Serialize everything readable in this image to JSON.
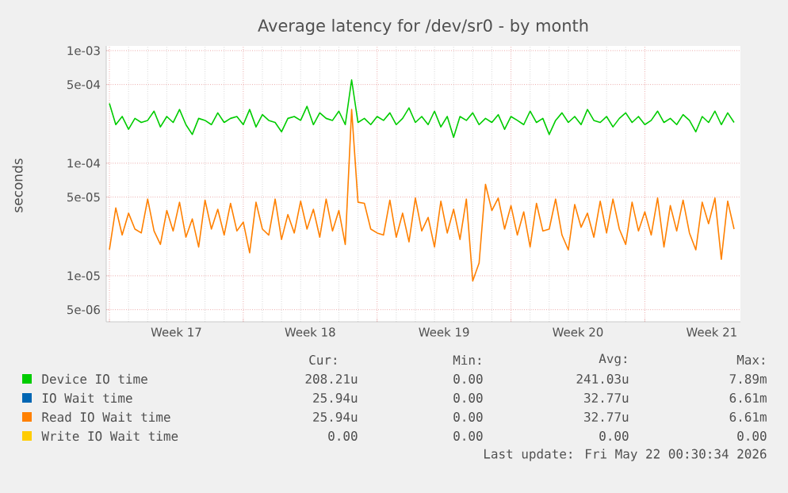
{
  "chart_data": {
    "type": "line",
    "title": "Average latency for /dev/sr0 - by month",
    "ylabel": "seconds",
    "log": "y",
    "grid": true,
    "legend": "bottom",
    "ylim": [
      3.9e-06,
      0.0011
    ],
    "yticks": [
      {
        "value": 0.001,
        "label": "1e-03"
      },
      {
        "value": 0.0005,
        "label": "5e-04"
      },
      {
        "value": 0.0001,
        "label": "1e-04"
      },
      {
        "value": 5e-05,
        "label": "5e-05"
      },
      {
        "value": 1e-05,
        "label": "1e-05"
      },
      {
        "value": 5e-06,
        "label": "5e-06"
      }
    ],
    "xlim": [
      "2026-04-19T20:00",
      "2026-05-23T00:00"
    ],
    "xticks": [
      {
        "value": "2026-04-20",
        "label": null
      },
      {
        "value": "2026-04-27",
        "label": null
      },
      {
        "value": "2026-05-04",
        "label": null
      },
      {
        "value": "2026-05-11",
        "label": null
      },
      {
        "value": "2026-05-18",
        "label": null
      },
      {
        "value": "2026-04-23T12:00",
        "label": "Week 17"
      },
      {
        "value": "2026-04-30T12:00",
        "label": "Week 18"
      },
      {
        "value": "2026-05-07T12:00",
        "label": "Week 19"
      },
      {
        "value": "2026-05-14T12:00",
        "label": "Week 20"
      },
      {
        "value": "2026-05-21T12:00",
        "label": "Week 21"
      }
    ],
    "x": [
      "2026-04-20T00:00",
      "2026-04-20T08:00",
      "2026-04-20T16:00",
      "2026-04-21T00:00",
      "2026-04-21T08:00",
      "2026-04-21T16:00",
      "2026-04-22T00:00",
      "2026-04-22T08:00",
      "2026-04-22T16:00",
      "2026-04-23T00:00",
      "2026-04-23T08:00",
      "2026-04-23T16:00",
      "2026-04-24T00:00",
      "2026-04-24T08:00",
      "2026-04-24T16:00",
      "2026-04-25T00:00",
      "2026-04-25T08:00",
      "2026-04-25T16:00",
      "2026-04-26T00:00",
      "2026-04-26T08:00",
      "2026-04-26T16:00",
      "2026-04-27T00:00",
      "2026-04-27T08:00",
      "2026-04-27T16:00",
      "2026-04-28T00:00",
      "2026-04-28T08:00",
      "2026-04-28T16:00",
      "2026-04-29T00:00",
      "2026-04-29T08:00",
      "2026-04-29T16:00",
      "2026-04-30T00:00",
      "2026-04-30T08:00",
      "2026-04-30T16:00",
      "2026-05-01T00:00",
      "2026-05-01T08:00",
      "2026-05-01T16:00",
      "2026-05-02T00:00",
      "2026-05-02T08:00",
      "2026-05-02T16:00",
      "2026-05-03T00:00",
      "2026-05-03T08:00",
      "2026-05-03T16:00",
      "2026-05-04T00:00",
      "2026-05-04T08:00",
      "2026-05-04T16:00",
      "2026-05-05T00:00",
      "2026-05-05T08:00",
      "2026-05-05T16:00",
      "2026-05-06T00:00",
      "2026-05-06T08:00",
      "2026-05-06T16:00",
      "2026-05-07T00:00",
      "2026-05-07T08:00",
      "2026-05-07T16:00",
      "2026-05-08T00:00",
      "2026-05-08T08:00",
      "2026-05-08T16:00",
      "2026-05-09T00:00",
      "2026-05-09T08:00",
      "2026-05-09T16:00",
      "2026-05-10T00:00",
      "2026-05-10T08:00",
      "2026-05-10T16:00",
      "2026-05-11T00:00",
      "2026-05-11T08:00",
      "2026-05-11T16:00",
      "2026-05-12T00:00",
      "2026-05-12T08:00",
      "2026-05-12T16:00",
      "2026-05-13T00:00",
      "2026-05-13T08:00",
      "2026-05-13T16:00",
      "2026-05-14T00:00",
      "2026-05-14T08:00",
      "2026-05-14T16:00",
      "2026-05-15T00:00",
      "2026-05-15T08:00",
      "2026-05-15T16:00",
      "2026-05-16T00:00",
      "2026-05-16T08:00",
      "2026-05-16T16:00",
      "2026-05-17T00:00",
      "2026-05-17T08:00",
      "2026-05-17T16:00",
      "2026-05-18T00:00",
      "2026-05-18T08:00",
      "2026-05-18T16:00",
      "2026-05-19T00:00",
      "2026-05-19T08:00",
      "2026-05-19T16:00",
      "2026-05-20T00:00",
      "2026-05-20T08:00",
      "2026-05-20T16:00",
      "2026-05-21T00:00",
      "2026-05-21T08:00",
      "2026-05-21T16:00",
      "2026-05-22T00:00",
      "2026-05-22T08:00",
      "2026-05-22T16:00"
    ],
    "series": [
      {
        "name": "Device IO time",
        "color": "#00cc00",
        "values": [
          0.00034,
          0.00022,
          0.00026,
          0.0002,
          0.00025,
          0.00023,
          0.00024,
          0.00029,
          0.00021,
          0.00026,
          0.00023,
          0.0003,
          0.00022,
          0.00018,
          0.00025,
          0.00024,
          0.00022,
          0.00028,
          0.00023,
          0.00025,
          0.00026,
          0.00022,
          0.0003,
          0.00021,
          0.00027,
          0.00024,
          0.00023,
          0.00019,
          0.00025,
          0.00026,
          0.00024,
          0.00032,
          0.00022,
          0.00028,
          0.00025,
          0.00024,
          0.00029,
          0.00022,
          0.00055,
          0.00023,
          0.00025,
          0.00022,
          0.00026,
          0.00024,
          0.00028,
          0.00022,
          0.00025,
          0.00031,
          0.00023,
          0.00026,
          0.00022,
          0.00029,
          0.00021,
          0.00026,
          0.00017,
          0.00026,
          0.00024,
          0.00028,
          0.00022,
          0.00025,
          0.00023,
          0.00027,
          0.0002,
          0.00026,
          0.00024,
          0.00022,
          0.00029,
          0.00023,
          0.00025,
          0.00018,
          0.00024,
          0.00028,
          0.00023,
          0.00026,
          0.00022,
          0.0003,
          0.00024,
          0.00023,
          0.00026,
          0.00021,
          0.00025,
          0.00028,
          0.00023,
          0.00026,
          0.00022,
          0.00024,
          0.00029,
          0.00023,
          0.00025,
          0.00022,
          0.00027,
          0.00024,
          0.00019,
          0.00026,
          0.00023,
          0.00029,
          0.00022,
          0.00028,
          0.00023
        ]
      },
      {
        "name": "IO Wait time",
        "color": "#0066b3",
        "values": [
          null,
          null,
          null,
          null,
          null,
          null,
          null,
          null,
          null,
          null,
          null,
          null,
          null,
          null,
          null,
          null,
          null,
          null,
          null,
          null,
          null,
          null,
          null,
          null,
          null,
          null,
          null,
          null,
          null,
          null,
          null,
          null,
          null,
          null,
          null,
          null,
          null,
          null,
          null,
          null,
          null,
          null,
          null,
          null,
          null,
          null,
          null,
          null,
          null,
          null,
          null,
          null,
          null,
          null,
          null,
          null,
          null,
          null,
          null,
          null,
          null,
          null,
          null,
          null,
          null,
          null,
          null,
          null,
          null,
          null,
          null,
          null,
          null,
          null,
          null,
          null,
          null,
          null,
          null,
          null,
          null,
          null,
          null,
          null,
          null,
          null,
          null,
          null,
          null,
          null,
          null,
          null,
          null,
          null,
          null,
          null,
          null,
          null,
          null
        ]
      },
      {
        "name": "Read IO Wait time",
        "color": "#ff8000",
        "values": [
          1.7e-05,
          4e-05,
          2.3e-05,
          3.6e-05,
          2.6e-05,
          2.4e-05,
          4.8e-05,
          2.5e-05,
          1.9e-05,
          3.8e-05,
          2.5e-05,
          4.5e-05,
          2.2e-05,
          3.2e-05,
          1.8e-05,
          4.7e-05,
          2.6e-05,
          3.9e-05,
          2.3e-05,
          4.4e-05,
          2.5e-05,
          3e-05,
          1.6e-05,
          4.5e-05,
          2.6e-05,
          2.3e-05,
          4.8e-05,
          2.1e-05,
          3.5e-05,
          2.4e-05,
          4.6e-05,
          2.6e-05,
          3.9e-05,
          2.2e-05,
          4.8e-05,
          2.5e-05,
          3.8e-05,
          1.9e-05,
          0.0003,
          4.5e-05,
          4.4e-05,
          2.6e-05,
          2.4e-05,
          2.3e-05,
          4.7e-05,
          2.2e-05,
          3.6e-05,
          2e-05,
          4.9e-05,
          2.5e-05,
          3.3e-05,
          1.8e-05,
          4.6e-05,
          2.4e-05,
          3.9e-05,
          2.1e-05,
          4.8e-05,
          9e-06,
          1.3e-05,
          6.5e-05,
          3.8e-05,
          4.9e-05,
          2.6e-05,
          4.2e-05,
          2.3e-05,
          3.7e-05,
          1.8e-05,
          4.4e-05,
          2.5e-05,
          2.6e-05,
          4.8e-05,
          2.3e-05,
          1.7e-05,
          4.3e-05,
          2.7e-05,
          3.6e-05,
          2.2e-05,
          4.6e-05,
          2.4e-05,
          4.8e-05,
          2.6e-05,
          1.9e-05,
          4.5e-05,
          2.5e-05,
          3.7e-05,
          2.3e-05,
          4.9e-05,
          1.8e-05,
          4.2e-05,
          2.5e-05,
          4.7e-05,
          2.4e-05,
          1.7e-05,
          4.5e-05,
          2.9e-05,
          4.9e-05,
          1.4e-05,
          4.6e-05,
          2.6e-05
        ]
      },
      {
        "name": "Write IO Wait time",
        "color": "#ffcc00",
        "values": [
          null,
          null,
          null,
          null,
          null,
          null,
          null,
          null,
          null,
          null,
          null,
          null,
          null,
          null,
          null,
          null,
          null,
          null,
          null,
          null,
          null,
          null,
          null,
          null,
          null,
          null,
          null,
          null,
          null,
          null,
          null,
          null,
          null,
          null,
          null,
          null,
          null,
          null,
          null,
          null,
          null,
          null,
          null,
          null,
          null,
          null,
          null,
          null,
          null,
          null,
          null,
          null,
          null,
          null,
          null,
          null,
          null,
          null,
          null,
          null,
          null,
          null,
          null,
          null,
          null,
          null,
          null,
          null,
          null,
          null,
          null,
          null,
          null,
          null,
          null,
          null,
          null,
          null,
          null,
          null,
          null,
          null,
          null,
          null,
          null,
          null,
          null,
          null,
          null,
          null,
          null,
          null,
          null,
          null,
          null,
          null,
          null,
          null,
          null
        ]
      }
    ],
    "annotations": [
      "Cur:",
      "Min:",
      "Avg:",
      "Max:",
      "208.21u",
      "0.00",
      "241.03u",
      "7.89m",
      "25.94u",
      "0.00",
      "32.77u",
      "6.61m",
      "25.94u",
      "0.00",
      "32.77u",
      "6.61m",
      "0.00",
      "0.00",
      "0.00",
      "0.00",
      "Last update: Fri May 22 00:30:34 2026"
    ]
  }
}
